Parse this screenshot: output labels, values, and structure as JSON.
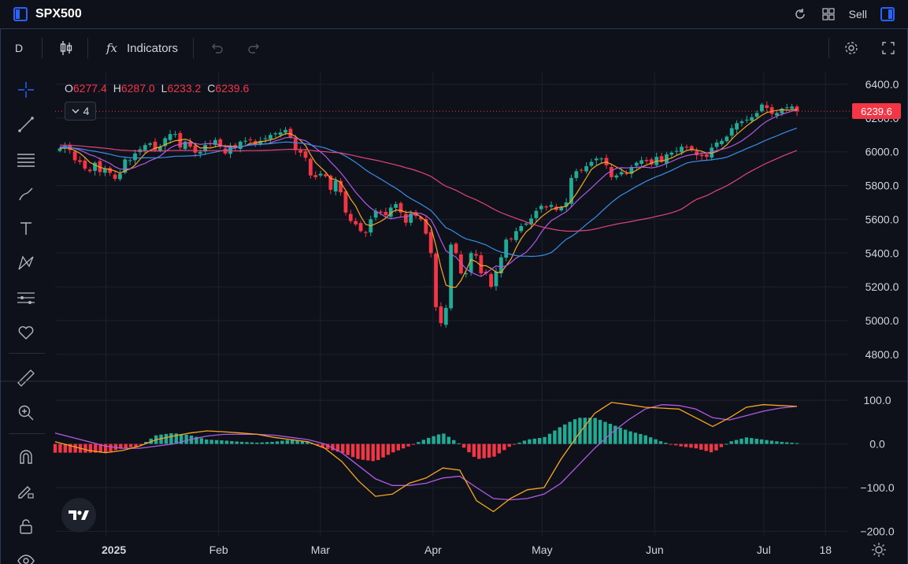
{
  "header": {
    "symbol": "SPX500",
    "sell_label": "Sell"
  },
  "toolbar": {
    "interval": "D",
    "indicators_label": "Indicators",
    "fx_glyph": "fx"
  },
  "icons": {
    "top": [
      "layout-icon",
      "refresh-icon",
      "grid-icon",
      "panel-icon"
    ],
    "left": [
      "crosshair-icon",
      "trendline-icon",
      "fib-icon",
      "brush-icon",
      "text-icon",
      "pattern-icon",
      "forecast-icon",
      "heart-icon",
      "ruler-icon",
      "zoom-in-icon",
      "magnet-icon",
      "pencil-lock-icon",
      "lock-icon",
      "eye-icon"
    ]
  },
  "legend": {
    "o_label": "O",
    "o_value": "6277.4",
    "h_label": "H",
    "h_value": "6287.0",
    "l_label": "L",
    "l_value": "6233.2",
    "c_label": "C",
    "c_value": "6239.6",
    "indicator_count": "4"
  },
  "last_price_label": "6239.6",
  "colors": {
    "background": "#0f111a",
    "up": "#22ab94",
    "down": "#f23645",
    "ma_fast": "#f5a623",
    "ma_mid": "#b05be5",
    "ma_slow": "#3a8ee6",
    "ma_long": "#e0457b",
    "macd": "#f5a623",
    "signal": "#b05be5",
    "hist_up": "#22ab94",
    "hist_down": "#f23645"
  },
  "chart_data": [
    {
      "type": "candlestick",
      "title": "",
      "ylim": [
        4650,
        6470
      ],
      "y_ticks": [
        6400,
        6200,
        6000,
        5800,
        5600,
        5400,
        5200,
        5000,
        4800
      ],
      "y_tick_labels": [
        "6400.0",
        "6200.0",
        "6000.0",
        "5800.0",
        "5600.0",
        "5400.0",
        "5200.0",
        "5000.0",
        "4800.0"
      ],
      "x_tick_labels": [
        "2025",
        "Feb",
        "Mar",
        "Apr",
        "May",
        "Jun",
        "Jul",
        "18"
      ],
      "x_tick_dates": [
        "2025-01-01",
        "2025-02-01",
        "2025-03-01",
        "2025-04-01",
        "2025-05-01",
        "2025-06-01",
        "2025-07-01",
        "2025-07-18"
      ],
      "series_close": [
        6020,
        6035,
        6010,
        5950,
        5940,
        5900,
        5885,
        5935,
        5880,
        5900,
        5875,
        5840,
        5870,
        5955,
        5950,
        5990,
        6015,
        6040,
        6050,
        6010,
        6030,
        6080,
        6105,
        6105,
        6025,
        6060,
        6030,
        5995,
        6000,
        6040,
        6045,
        6070,
        6030,
        5990,
        6035,
        6025,
        6060,
        6065,
        6070,
        6040,
        6065,
        6080,
        6100,
        6110,
        6115,
        6130,
        6085,
        6010,
        5995,
        5965,
        5860,
        5850,
        5870,
        5855,
        5775,
        5830,
        5760,
        5640,
        5590,
        5570,
        5530,
        5520,
        5600,
        5650,
        5640,
        5625,
        5670,
        5690,
        5640,
        5580,
        5635,
        5620,
        5600,
        5515,
        5400,
        5080,
        4985,
        5075,
        5450,
        5400,
        5280,
        5280,
        5400,
        5385,
        5280,
        5280,
        5200,
        5290,
        5375,
        5480,
        5485,
        5530,
        5560,
        5575,
        5605,
        5650,
        5680,
        5670,
        5685,
        5655,
        5670,
        5700,
        5845,
        5885,
        5890,
        5915,
        5940,
        5960,
        5960,
        5920,
        5850,
        5860,
        5880,
        5870,
        5910,
        5935,
        5950,
        5945,
        5925,
        5970,
        5940,
        5985,
        5995,
        6005,
        6030,
        6025,
        6010,
        5980,
        5975,
        5970,
        6025,
        6055,
        6065,
        6090,
        6140,
        6170,
        6180,
        6190,
        6205,
        6230,
        6280,
        6260,
        6225,
        6230,
        6255,
        6263,
        6268,
        6240
      ]
    },
    {
      "type": "histogram",
      "title": "",
      "ylim": [
        -210,
        140
      ],
      "y_ticks": [
        100,
        0,
        -100,
        -200
      ],
      "y_tick_labels": [
        "100.0",
        "0.0",
        "−100.0",
        "−200.0"
      ],
      "series": [
        {
          "name": "",
          "kind": "line",
          "values": [
            5,
            -5,
            -15,
            -20,
            -15,
            -5,
            10,
            18,
            25,
            30,
            28,
            25,
            22,
            15,
            10,
            5,
            -10,
            -40,
            -85,
            -120,
            -115,
            -90,
            -78,
            -55,
            -60,
            -130,
            -155,
            -125,
            -105,
            -100,
            -35,
            20,
            70,
            95,
            90,
            84,
            82,
            80,
            60,
            40,
            60,
            84,
            90,
            88,
            86
          ]
        },
        {
          "name": "",
          "kind": "line",
          "values": [
            25,
            15,
            5,
            -5,
            -10,
            -10,
            -5,
            0,
            10,
            18,
            22,
            22,
            22,
            20,
            15,
            10,
            0,
            -20,
            -50,
            -80,
            -95,
            -95,
            -90,
            -78,
            -74,
            -100,
            -125,
            -128,
            -125,
            -115,
            -90,
            -50,
            -10,
            25,
            55,
            80,
            90,
            88,
            80,
            60,
            55,
            65,
            75,
            82,
            86
          ]
        },
        {
          "name": "",
          "kind": "bars",
          "values": [
            -20,
            -20,
            -20,
            -20,
            -10,
            -5,
            20,
            25,
            20,
            10,
            8,
            5,
            3,
            5,
            10,
            5,
            -10,
            -20,
            -35,
            -40,
            -20,
            -5,
            12,
            25,
            0,
            -35,
            -30,
            -5,
            10,
            15,
            40,
            60,
            60,
            45,
            30,
            20,
            5,
            -5,
            -10,
            -20,
            5,
            15,
            10,
            5,
            2
          ]
        }
      ]
    }
  ]
}
